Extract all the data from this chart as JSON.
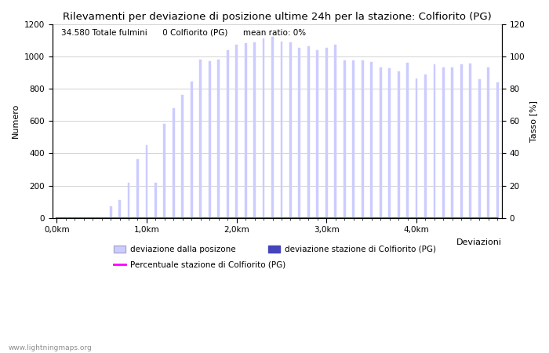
{
  "title": "Rilevamenti per deviazione di posizione ultime 24h per la stazione: Colfiorito (PG)",
  "info_text": "34.580 Totale fulmini      0 Colfiorito (PG)      mean ratio: 0%",
  "xlabel": "Deviazioni",
  "ylabel_left": "Numero",
  "ylabel_right": "Tasso [%]",
  "bar_color_light": "#ccccff",
  "bar_color_dark": "#4444bb",
  "line_color": "#ff00ff",
  "background_color": "#ffffff",
  "grid_color": "#cccccc",
  "ylim_left": [
    0,
    1200
  ],
  "ylim_right": [
    0,
    120
  ],
  "yticks_left": [
    0,
    200,
    400,
    600,
    800,
    1000,
    1200
  ],
  "yticks_right": [
    0,
    20,
    40,
    60,
    80,
    100,
    120
  ],
  "xtick_labels": [
    "0,0km",
    "1,0km",
    "2,0km",
    "3,0km",
    "4,0km"
  ],
  "xtick_positions": [
    0,
    10,
    20,
    30,
    40
  ],
  "num_bars": 50,
  "bar_values": [
    5,
    5,
    5,
    5,
    5,
    5,
    70,
    110,
    215,
    365,
    450,
    215,
    580,
    680,
    760,
    845,
    980,
    970,
    980,
    1040,
    1070,
    1080,
    1085,
    1110,
    1120,
    1090,
    1085,
    1050,
    1060,
    1040,
    1050,
    1070,
    975,
    975,
    975,
    965,
    930,
    925,
    905,
    960,
    865,
    885,
    950,
    930,
    930,
    950,
    955,
    860,
    930,
    840
  ],
  "station_bar_values": [
    0,
    0,
    0,
    0,
    0,
    0,
    0,
    0,
    0,
    0,
    0,
    0,
    0,
    0,
    0,
    0,
    0,
    0,
    0,
    0,
    0,
    0,
    0,
    0,
    0,
    0,
    0,
    0,
    0,
    0,
    0,
    0,
    0,
    0,
    0,
    0,
    0,
    0,
    0,
    0,
    0,
    0,
    0,
    0,
    0,
    0,
    0,
    0,
    0,
    0
  ],
  "ratio_values": [
    0,
    0,
    0,
    0,
    0,
    0,
    0,
    0,
    0,
    0,
    0,
    0,
    0,
    0,
    0,
    0,
    0,
    0,
    0,
    0,
    0,
    0,
    0,
    0,
    0,
    0,
    0,
    0,
    0,
    0,
    0,
    0,
    0,
    0,
    0,
    0,
    0,
    0,
    0,
    0,
    0,
    0,
    0,
    0,
    0,
    0,
    0,
    0,
    0,
    0
  ],
  "legend_label_light": "deviazione dalla posizone",
  "legend_label_dark": "deviazione stazione di Colfiorito (PG)",
  "legend_label_line": "Percentuale stazione di Colfiorito (PG)",
  "watermark": "www.lightningmaps.org",
  "title_fontsize": 9.5,
  "axis_fontsize": 8,
  "tick_fontsize": 7.5,
  "legend_fontsize": 7.5,
  "info_fontsize": 7.5,
  "bar_width": 0.25,
  "fig_width": 7.0,
  "fig_height": 4.5,
  "fig_dpi": 100
}
